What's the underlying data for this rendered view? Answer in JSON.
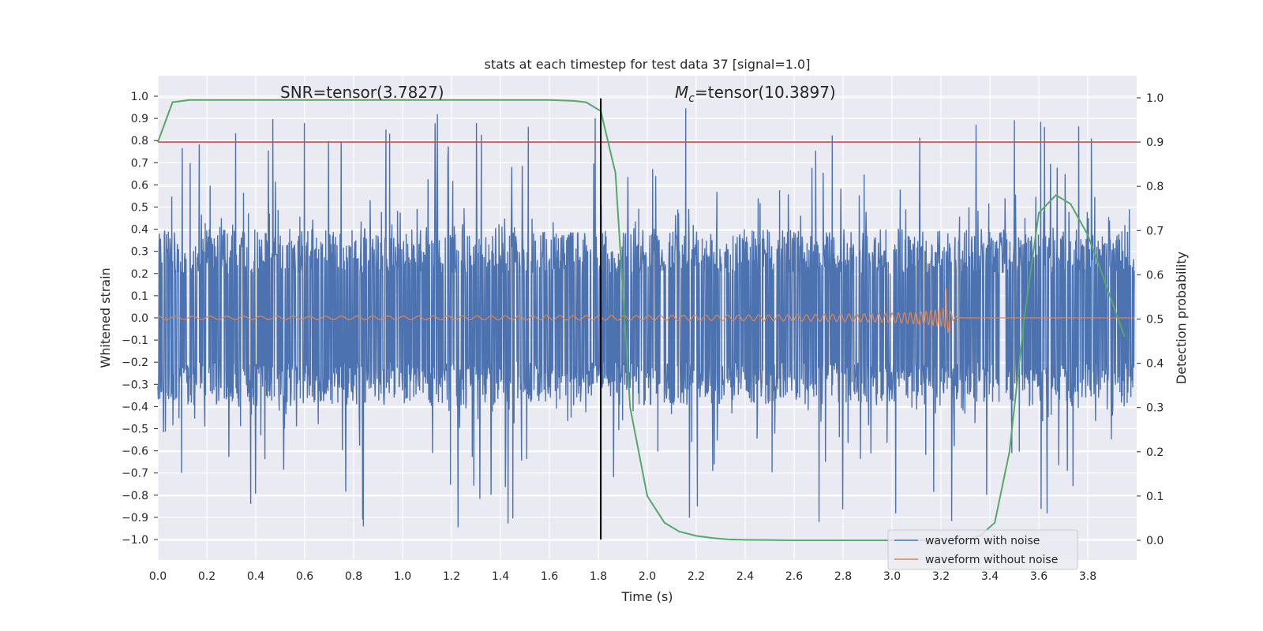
{
  "chart_data": {
    "type": "line",
    "title": "stats at each timestep for test data 37 [signal=1.0]",
    "xlabel": "Time (s)",
    "ylabel_left": "Whitened strain",
    "ylabel_right": "Detection probability",
    "xlim": [
      0.0,
      4.0
    ],
    "ylim_left": [
      -1.1,
      1.1
    ],
    "ylim_right": [
      -0.05,
      1.05
    ],
    "x_ticks": [
      "0.0",
      "0.2",
      "0.4",
      "0.6",
      "0.8",
      "1.0",
      "1.2",
      "1.4",
      "1.6",
      "1.8",
      "2.0",
      "2.2",
      "2.4",
      "2.6",
      "2.8",
      "3.0",
      "3.2",
      "3.4",
      "3.6",
      "3.8"
    ],
    "y_ticks_left": [
      "1.0",
      "0.9",
      "0.8",
      "0.7",
      "0.6",
      "0.5",
      "0.4",
      "0.3",
      "0.2",
      "0.1",
      "0.0",
      "−0.1",
      "−0.2",
      "−0.3",
      "−0.4",
      "−0.5",
      "−0.6",
      "−0.7",
      "−0.8",
      "−0.9",
      "−1.0"
    ],
    "y_ticks_right": [
      "1.0",
      "0.9",
      "0.8",
      "0.7",
      "0.6",
      "0.5",
      "0.4",
      "0.3",
      "0.2",
      "0.1",
      "0.0"
    ],
    "grid": true,
    "legend_position": "lower-right",
    "annotations": {
      "snr": "SNR=tensor(3.7827)",
      "mc_symbol": "M",
      "mc_sub": "c",
      "mc_value": "=tensor(10.3897)"
    },
    "series": [
      {
        "name": "waveform with noise",
        "color": "#4c72b0",
        "axis": "left",
        "description": "dense noise, amplitude roughly within ±0.6 with spikes up to ~±1.0"
      },
      {
        "name": "waveform without noise",
        "color": "#dd8452",
        "axis": "left",
        "description": "chirp ending near t=3.22 s with peak amplitude ~0.15"
      },
      {
        "name": "",
        "color": "#55a868",
        "axis": "right",
        "x": [
          0.0,
          0.06,
          0.13,
          0.2,
          0.4,
          0.8,
          1.2,
          1.6,
          1.7,
          1.75,
          1.81,
          1.87,
          1.93,
          2.0,
          2.07,
          2.13,
          2.2,
          2.27,
          2.33,
          2.4,
          2.6,
          2.8,
          3.0,
          3.2,
          3.3,
          3.36,
          3.42,
          3.48,
          3.54,
          3.6,
          3.67,
          3.73,
          3.8,
          3.86,
          3.95
        ],
        "y": [
          0.9,
          0.99,
          0.995,
          0.995,
          0.995,
          0.995,
          0.995,
          0.995,
          0.993,
          0.99,
          0.97,
          0.83,
          0.3,
          0.1,
          0.04,
          0.02,
          0.01,
          0.005,
          0.002,
          0.001,
          0.0,
          0.0,
          0.0,
          0.0,
          0.0,
          0.01,
          0.04,
          0.2,
          0.5,
          0.74,
          0.78,
          0.76,
          0.69,
          0.6,
          0.46
        ]
      }
    ],
    "threshold_line": {
      "y_right": 0.9,
      "color": "#c44e52"
    },
    "vertical_line": {
      "x": 1.81,
      "y_from": -1.0,
      "y_to": 0.99,
      "color": "#000000"
    },
    "chirp_end_time": 3.22,
    "noise_envelope": 0.55
  }
}
